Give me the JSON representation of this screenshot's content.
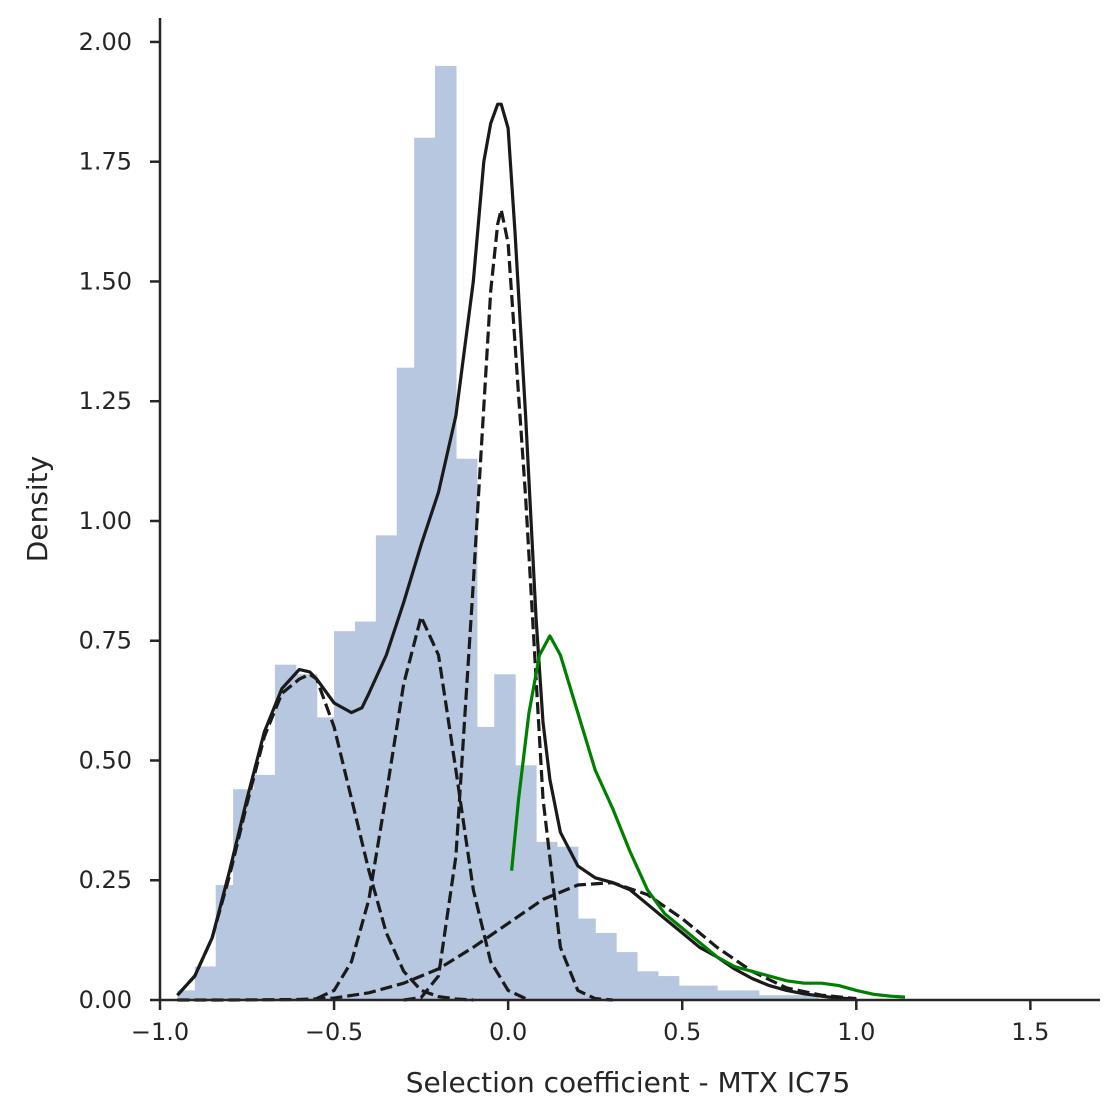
{
  "chart_data": {
    "type": "histogram",
    "title": "",
    "xlabel": "Selection coefficient - MTX IC75",
    "ylabel": "Density",
    "xlim": [
      -1.0,
      1.7
    ],
    "ylim": [
      0,
      2.05
    ],
    "xticks": [
      -1.0,
      -0.5,
      0.0,
      0.5,
      1.0,
      1.5
    ],
    "xtick_labels": [
      "−1.0",
      "−0.5",
      "0.0",
      "0.5",
      "1.0",
      "1.5"
    ],
    "yticks": [
      0,
      0.25,
      0.5,
      0.75,
      1.0,
      1.25,
      1.5,
      1.75,
      2.0
    ],
    "ytick_labels": [
      "0.00",
      "0.25",
      "0.50",
      "0.75",
      "1.00",
      "1.25",
      "1.50",
      "1.75",
      "2.00"
    ],
    "grid": false,
    "histogram": {
      "color": "#b7c7e0",
      "bin_edges": [
        -0.95,
        -0.9,
        -0.84,
        -0.79,
        -0.73,
        -0.67,
        -0.61,
        -0.55,
        -0.5,
        -0.44,
        -0.38,
        -0.32,
        -0.27,
        -0.21,
        -0.15,
        -0.09,
        -0.04,
        0.02,
        0.08,
        0.14,
        0.2,
        0.25,
        0.31,
        0.37,
        0.43,
        0.49,
        0.54,
        0.6,
        0.66,
        0.72,
        0.78,
        0.83,
        0.89,
        0.95,
        1.01,
        1.07,
        1.12
      ],
      "densities": [
        0.02,
        0.07,
        0.24,
        0.44,
        0.47,
        0.7,
        0.68,
        0.59,
        0.77,
        0.79,
        0.97,
        1.32,
        1.8,
        1.95,
        1.13,
        0.57,
        0.68,
        0.49,
        0.33,
        0.32,
        0.17,
        0.14,
        0.1,
        0.06,
        0.05,
        0.03,
        0.03,
        0.02,
        0.02,
        0.01,
        0.01,
        0.01,
        0.0,
        0.0,
        0.0,
        0.0
      ]
    },
    "series": [
      {
        "style": "solid",
        "color": "#1a1a1a",
        "x": [
          -0.95,
          -0.9,
          -0.85,
          -0.8,
          -0.75,
          -0.7,
          -0.65,
          -0.6,
          -0.57,
          -0.55,
          -0.5,
          -0.45,
          -0.42,
          -0.4,
          -0.35,
          -0.3,
          -0.25,
          -0.2,
          -0.15,
          -0.1,
          -0.07,
          -0.05,
          -0.03,
          -0.02,
          0.0,
          0.02,
          0.05,
          0.08,
          0.1,
          0.12,
          0.15,
          0.2,
          0.25,
          0.3,
          0.35,
          0.4,
          0.45,
          0.5,
          0.55,
          0.6,
          0.65,
          0.7,
          0.75,
          0.8,
          0.85,
          0.9,
          0.95,
          1.0
        ],
        "y": [
          0.01,
          0.05,
          0.13,
          0.27,
          0.42,
          0.56,
          0.65,
          0.69,
          0.685,
          0.67,
          0.62,
          0.6,
          0.61,
          0.64,
          0.72,
          0.83,
          0.95,
          1.06,
          1.22,
          1.5,
          1.75,
          1.83,
          1.87,
          1.87,
          1.82,
          1.6,
          1.22,
          0.8,
          0.58,
          0.46,
          0.35,
          0.28,
          0.255,
          0.245,
          0.23,
          0.2,
          0.17,
          0.14,
          0.11,
          0.09,
          0.065,
          0.045,
          0.03,
          0.02,
          0.013,
          0.008,
          0.004,
          0.002
        ]
      },
      {
        "style": "dashed",
        "color": "#1a1a1a",
        "x": [
          -0.95,
          -0.9,
          -0.85,
          -0.8,
          -0.75,
          -0.7,
          -0.65,
          -0.6,
          -0.57,
          -0.55,
          -0.5,
          -0.45,
          -0.4,
          -0.35,
          -0.3,
          -0.25,
          -0.2,
          -0.15,
          -0.1
        ],
        "y": [
          0.01,
          0.05,
          0.13,
          0.26,
          0.41,
          0.55,
          0.64,
          0.67,
          0.68,
          0.67,
          0.57,
          0.42,
          0.27,
          0.14,
          0.06,
          0.02,
          0.007,
          0.002,
          0.0
        ]
      },
      {
        "style": "dashed",
        "color": "#1a1a1a",
        "x": [
          -0.55,
          -0.5,
          -0.45,
          -0.4,
          -0.35,
          -0.3,
          -0.25,
          -0.2,
          -0.15,
          -0.1,
          -0.05,
          0.0,
          0.05
        ],
        "y": [
          0.003,
          0.02,
          0.08,
          0.21,
          0.43,
          0.66,
          0.8,
          0.72,
          0.48,
          0.23,
          0.08,
          0.02,
          0.003
        ]
      },
      {
        "style": "dashed",
        "color": "#1a1a1a",
        "x": [
          -0.3,
          -0.25,
          -0.2,
          -0.15,
          -0.1,
          -0.05,
          -0.03,
          -0.02,
          0.0,
          0.05,
          0.1,
          0.15,
          0.2,
          0.25,
          0.3
        ],
        "y": [
          0.0,
          0.005,
          0.05,
          0.3,
          0.87,
          1.48,
          1.62,
          1.65,
          1.58,
          1.05,
          0.42,
          0.11,
          0.02,
          0.003,
          0.0
        ]
      },
      {
        "style": "dashed",
        "color": "#1a1a1a",
        "x": [
          -0.95,
          -0.8,
          -0.6,
          -0.5,
          -0.4,
          -0.3,
          -0.2,
          -0.1,
          0.0,
          0.1,
          0.2,
          0.3,
          0.4,
          0.5,
          0.6,
          0.7,
          0.8,
          0.9,
          1.0
        ],
        "y": [
          0.0,
          0.0,
          0.001,
          0.004,
          0.015,
          0.035,
          0.065,
          0.11,
          0.16,
          0.21,
          0.24,
          0.245,
          0.22,
          0.17,
          0.11,
          0.06,
          0.025,
          0.01,
          0.003
        ]
      },
      {
        "style": "solid",
        "color": "#008000",
        "x": [
          0.01,
          0.03,
          0.06,
          0.09,
          0.12,
          0.15,
          0.2,
          0.25,
          0.3,
          0.35,
          0.4,
          0.45,
          0.5,
          0.55,
          0.6,
          0.65,
          0.7,
          0.75,
          0.8,
          0.85,
          0.9,
          0.95,
          1.0,
          1.05,
          1.1,
          1.14
        ],
        "y": [
          0.27,
          0.42,
          0.6,
          0.72,
          0.76,
          0.72,
          0.6,
          0.48,
          0.4,
          0.31,
          0.23,
          0.18,
          0.15,
          0.12,
          0.09,
          0.07,
          0.06,
          0.05,
          0.04,
          0.035,
          0.035,
          0.03,
          0.02,
          0.012,
          0.008,
          0.006
        ]
      }
    ]
  }
}
